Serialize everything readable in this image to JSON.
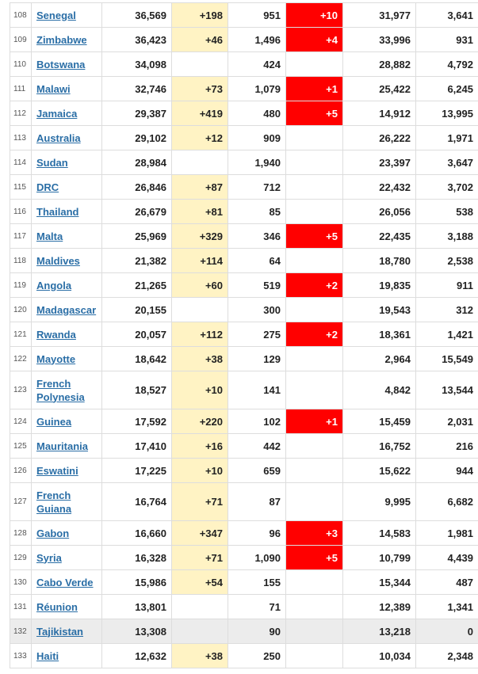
{
  "table": {
    "rows": [
      {
        "rank": "108",
        "country": "Senegal",
        "total": "36,569",
        "new": "+198",
        "deaths": "951",
        "newdeaths": "+10",
        "recovered": "31,977",
        "active": "3,641"
      },
      {
        "rank": "109",
        "country": "Zimbabwe",
        "total": "36,423",
        "new": "+46",
        "deaths": "1,496",
        "newdeaths": "+4",
        "recovered": "33,996",
        "active": "931"
      },
      {
        "rank": "110",
        "country": "Botswana",
        "total": "34,098",
        "new": "",
        "deaths": "424",
        "newdeaths": "",
        "recovered": "28,882",
        "active": "4,792"
      },
      {
        "rank": "111",
        "country": "Malawi",
        "total": "32,746",
        "new": "+73",
        "deaths": "1,079",
        "newdeaths": "+1",
        "recovered": "25,422",
        "active": "6,245"
      },
      {
        "rank": "112",
        "country": "Jamaica",
        "total": "29,387",
        "new": "+419",
        "deaths": "480",
        "newdeaths": "+5",
        "recovered": "14,912",
        "active": "13,995"
      },
      {
        "rank": "113",
        "country": "Australia",
        "total": "29,102",
        "new": "+12",
        "deaths": "909",
        "newdeaths": "",
        "recovered": "26,222",
        "active": "1,971"
      },
      {
        "rank": "114",
        "country": "Sudan",
        "total": "28,984",
        "new": "",
        "deaths": "1,940",
        "newdeaths": "",
        "recovered": "23,397",
        "active": "3,647"
      },
      {
        "rank": "115",
        "country": "DRC",
        "total": "26,846",
        "new": "+87",
        "deaths": "712",
        "newdeaths": "",
        "recovered": "22,432",
        "active": "3,702"
      },
      {
        "rank": "116",
        "country": "Thailand",
        "total": "26,679",
        "new": "+81",
        "deaths": "85",
        "newdeaths": "",
        "recovered": "26,056",
        "active": "538"
      },
      {
        "rank": "117",
        "country": "Malta",
        "total": "25,969",
        "new": "+329",
        "deaths": "346",
        "newdeaths": "+5",
        "recovered": "22,435",
        "active": "3,188"
      },
      {
        "rank": "118",
        "country": "Maldives",
        "total": "21,382",
        "new": "+114",
        "deaths": "64",
        "newdeaths": "",
        "recovered": "18,780",
        "active": "2,538"
      },
      {
        "rank": "119",
        "country": "Angola",
        "total": "21,265",
        "new": "+60",
        "deaths": "519",
        "newdeaths": "+2",
        "recovered": "19,835",
        "active": "911"
      },
      {
        "rank": "120",
        "country": "Madagascar",
        "total": "20,155",
        "new": "",
        "deaths": "300",
        "newdeaths": "",
        "recovered": "19,543",
        "active": "312"
      },
      {
        "rank": "121",
        "country": "Rwanda",
        "total": "20,057",
        "new": "+112",
        "deaths": "275",
        "newdeaths": "+2",
        "recovered": "18,361",
        "active": "1,421"
      },
      {
        "rank": "122",
        "country": "Mayotte",
        "total": "18,642",
        "new": "+38",
        "deaths": "129",
        "newdeaths": "",
        "recovered": "2,964",
        "active": "15,549"
      },
      {
        "rank": "123",
        "country": "French Polynesia",
        "total": "18,527",
        "new": "+10",
        "deaths": "141",
        "newdeaths": "",
        "recovered": "4,842",
        "active": "13,544"
      },
      {
        "rank": "124",
        "country": "Guinea",
        "total": "17,592",
        "new": "+220",
        "deaths": "102",
        "newdeaths": "+1",
        "recovered": "15,459",
        "active": "2,031"
      },
      {
        "rank": "125",
        "country": "Mauritania",
        "total": "17,410",
        "new": "+16",
        "deaths": "442",
        "newdeaths": "",
        "recovered": "16,752",
        "active": "216"
      },
      {
        "rank": "126",
        "country": "Eswatini",
        "total": "17,225",
        "new": "+10",
        "deaths": "659",
        "newdeaths": "",
        "recovered": "15,622",
        "active": "944"
      },
      {
        "rank": "127",
        "country": "French Guiana",
        "total": "16,764",
        "new": "+71",
        "deaths": "87",
        "newdeaths": "",
        "recovered": "9,995",
        "active": "6,682"
      },
      {
        "rank": "128",
        "country": "Gabon",
        "total": "16,660",
        "new": "+347",
        "deaths": "96",
        "newdeaths": "+3",
        "recovered": "14,583",
        "active": "1,981"
      },
      {
        "rank": "129",
        "country": "Syria",
        "total": "16,328",
        "new": "+71",
        "deaths": "1,090",
        "newdeaths": "+5",
        "recovered": "10,799",
        "active": "4,439"
      },
      {
        "rank": "130",
        "country": "Cabo Verde",
        "total": "15,986",
        "new": "+54",
        "deaths": "155",
        "newdeaths": "",
        "recovered": "15,344",
        "active": "487"
      },
      {
        "rank": "131",
        "country": "Réunion",
        "total": "13,801",
        "new": "",
        "deaths": "71",
        "newdeaths": "",
        "recovered": "12,389",
        "active": "1,341"
      },
      {
        "rank": "132",
        "country": "Tajikistan",
        "total": "13,308",
        "new": "",
        "deaths": "90",
        "newdeaths": "",
        "recovered": "13,218",
        "active": "0"
      },
      {
        "rank": "133",
        "country": "Haiti",
        "total": "12,632",
        "new": "+38",
        "deaths": "250",
        "newdeaths": "",
        "recovered": "10,034",
        "active": "2,348"
      }
    ],
    "colors": {
      "new_cases_bg": "#fff3c4",
      "new_deaths_bg": "#ff0000",
      "link": "#2a6ea6",
      "highlight_row_bg": "#ececec"
    }
  }
}
